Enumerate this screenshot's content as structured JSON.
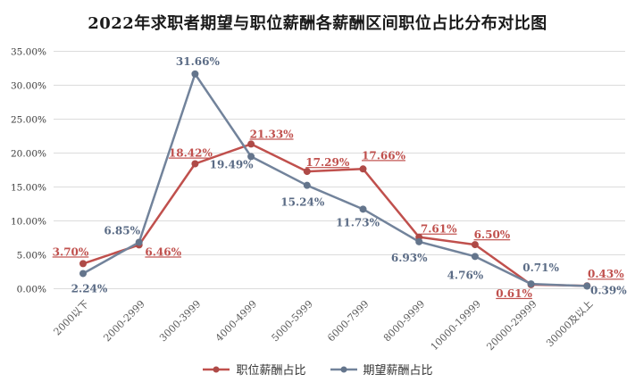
{
  "title": "2022年求职者期望与职位薪酬各薪酬区间职位占比分布对比图",
  "chart_data": {
    "type": "line",
    "title": "2022年求职者期望与职位薪酬各薪酬区间职位占比分布对比图",
    "categories": [
      "2000以下",
      "2000-2999",
      "3000-3999",
      "4000-4999",
      "5000-5999",
      "6000-7999",
      "8000-9999",
      "10000-19999",
      "20000-29999",
      "30000及以上"
    ],
    "series": [
      {
        "name": "职位薪酬占比",
        "color": "#C0504D",
        "marker_color": "#AE4A47",
        "label_color": "#C0504D",
        "label_underline": true,
        "values": [
          3.7,
          6.46,
          18.42,
          21.33,
          17.29,
          17.66,
          7.61,
          6.5,
          0.61,
          0.43
        ],
        "label_offsets": [
          [
            -14,
            -9
          ],
          [
            27,
            12
          ],
          [
            -5,
            -8
          ],
          [
            23,
            -7
          ],
          [
            23,
            -6
          ],
          [
            23,
            -11
          ],
          [
            22,
            -5
          ],
          [
            19,
            -7
          ],
          [
            -19,
            14
          ],
          [
            21,
            -9
          ]
        ]
      },
      {
        "name": "期望薪酬占比",
        "color": "#72839B",
        "marker_color": "#64758C",
        "label_color": "#5A6B85",
        "label_underline": false,
        "values": [
          2.24,
          6.85,
          31.66,
          19.49,
          15.24,
          11.73,
          6.93,
          4.76,
          0.71,
          0.39
        ],
        "label_offsets": [
          [
            7,
            21
          ],
          [
            -19,
            -9
          ],
          [
            3,
            -10
          ],
          [
            -22,
            13
          ],
          [
            -5,
            23
          ],
          [
            -6,
            19
          ],
          [
            -11,
            22
          ],
          [
            -11,
            25
          ],
          [
            11,
            -14
          ],
          [
            24,
            9
          ]
        ]
      }
    ],
    "ylim": [
      0,
      35
    ],
    "ytick_step": 5,
    "ytick_labels": [
      "0.00%",
      "5.00%",
      "10.00%",
      "15.00%",
      "20.00%",
      "25.00%",
      "30.00%",
      "35.00%"
    ],
    "grid": true,
    "gridline_color": "#dcdcdc",
    "legend_position": "bottom"
  }
}
